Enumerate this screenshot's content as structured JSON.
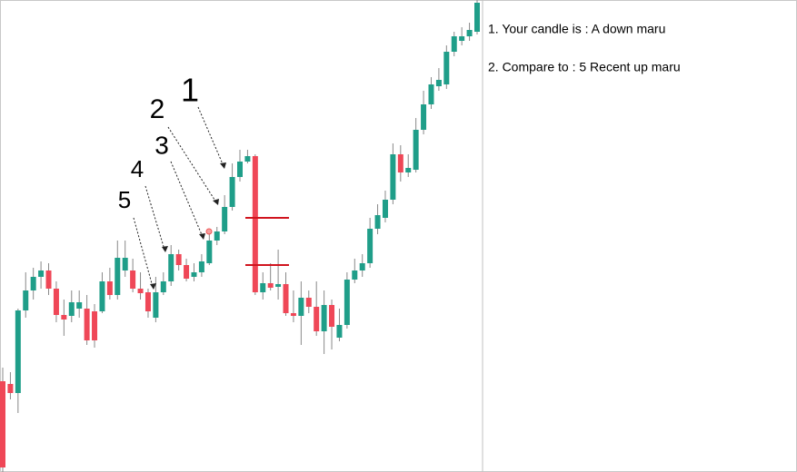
{
  "chart_data": {
    "type": "candlestick",
    "up_color": "#1f9e89",
    "down_color": "#ef4757",
    "ylim": [
      0,
      520
    ],
    "open": [
      100,
      97,
      87,
      178,
      200,
      215,
      222,
      202,
      173,
      172,
      180,
      180,
      177,
      177,
      210,
      195,
      222,
      222,
      202,
      198,
      170,
      198,
      210,
      240,
      228,
      215,
      220,
      230,
      255,
      265,
      292,
      325,
      342,
      348,
      198,
      208,
      204,
      207,
      175,
      172,
      192,
      182,
      155,
      184,
      148,
      162,
      212,
      222,
      230,
      268,
      280,
      300,
      350,
      330,
      333,
      377,
      405,
      425,
      427,
      463,
      475,
      480,
      485
    ],
    "high": [
      115,
      110,
      180,
      220,
      225,
      232,
      230,
      210,
      190,
      200,
      200,
      195,
      185,
      220,
      225,
      255,
      255,
      235,
      220,
      202,
      215,
      220,
      250,
      245,
      235,
      230,
      240,
      265,
      270,
      305,
      340,
      355,
      355,
      350,
      220,
      230,
      245,
      220,
      200,
      210,
      200,
      210,
      200,
      190,
      180,
      220,
      235,
      240,
      280,
      295,
      310,
      362,
      360,
      350,
      390,
      420,
      435,
      445,
      470,
      485,
      490,
      495,
      520
    ],
    "low": [
      0,
      80,
      65,
      170,
      190,
      202,
      195,
      165,
      150,
      165,
      170,
      140,
      137,
      175,
      190,
      190,
      215,
      198,
      190,
      170,
      165,
      195,
      205,
      222,
      210,
      210,
      215,
      228,
      250,
      262,
      288,
      320,
      340,
      195,
      190,
      200,
      190,
      172,
      165,
      140,
      175,
      150,
      130,
      135,
      144,
      158,
      208,
      215,
      225,
      262,
      275,
      295,
      320,
      325,
      330,
      372,
      400,
      420,
      422,
      458,
      470,
      475,
      482
    ],
    "close": [
      5,
      87,
      178,
      200,
      215,
      222,
      202,
      173,
      168,
      187,
      187,
      145,
      145,
      210,
      195,
      236,
      236,
      202,
      197,
      177,
      198,
      210,
      240,
      228,
      213,
      220,
      232,
      255,
      265,
      292,
      325,
      342,
      348,
      198,
      208,
      203,
      207,
      175,
      172,
      192,
      182,
      155,
      184,
      160,
      162,
      212,
      222,
      230,
      268,
      283,
      300,
      350,
      330,
      335,
      377,
      405,
      427,
      432,
      463,
      480,
      480,
      487,
      517
    ],
    "annotations": [
      "1",
      "2",
      "3",
      "4",
      "5"
    ],
    "notes": [
      "1. Your candle is : A down maru",
      "2. Compare to : 5 Recent up maru"
    ]
  }
}
